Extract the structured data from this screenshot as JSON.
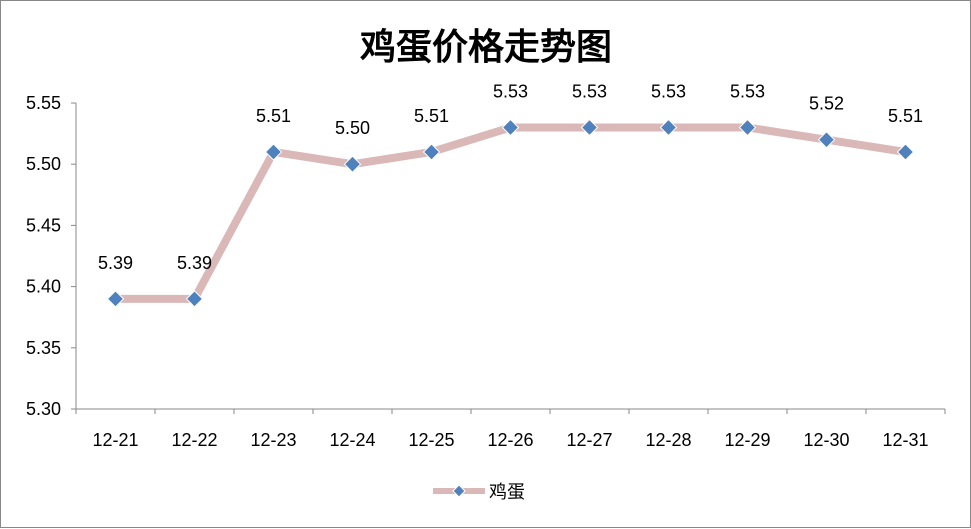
{
  "chart_data": {
    "type": "line",
    "title": "鸡蛋价格走势图",
    "xlabel": "",
    "ylabel": "",
    "categories": [
      "12-21",
      "12-22",
      "12-23",
      "12-24",
      "12-25",
      "12-26",
      "12-27",
      "12-28",
      "12-29",
      "12-30",
      "12-31"
    ],
    "series": [
      {
        "name": "鸡蛋",
        "values": [
          5.39,
          5.39,
          5.51,
          5.5,
          5.51,
          5.53,
          5.53,
          5.53,
          5.53,
          5.52,
          5.51
        ],
        "labels": [
          "5.39",
          "5.39",
          "5.51",
          "5.50",
          "5.51",
          "5.53",
          "5.53",
          "5.53",
          "5.53",
          "5.52",
          "5.51"
        ],
        "line_color": "#dbb8b8",
        "marker_color": "#4f81bd",
        "marker": "diamond"
      }
    ],
    "ylim": [
      5.3,
      5.55
    ],
    "yticks": [
      "5.30",
      "5.35",
      "5.40",
      "5.45",
      "5.50",
      "5.55"
    ],
    "grid": false,
    "legend_position": "bottom"
  }
}
